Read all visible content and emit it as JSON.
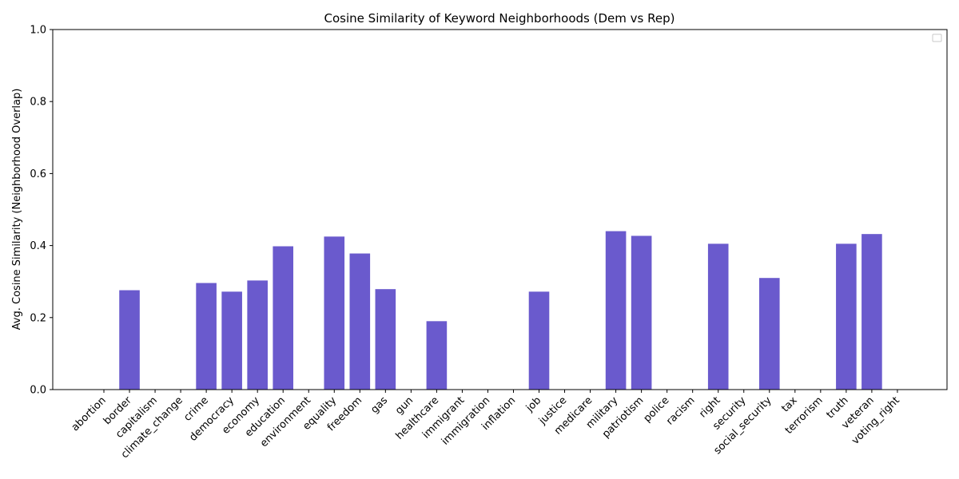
{
  "chart_data": {
    "type": "bar",
    "title": "Cosine Similarity of Keyword Neighborhoods (Dem vs Rep)",
    "xlabel": "",
    "ylabel": "Avg. Cosine Similarity (Neighborhood Overlap)",
    "ylim": [
      0,
      1.0
    ],
    "yticks": [
      "0.0",
      "0.2",
      "0.4",
      "0.6",
      "0.8",
      "1.0"
    ],
    "bar_color": "#6a5acd",
    "grid": false,
    "legend": "top-right (empty)",
    "categories": [
      "abortion",
      "border",
      "capitalism",
      "climate_change",
      "crime",
      "democracy",
      "economy",
      "education",
      "environment",
      "equality",
      "freedom",
      "gas",
      "gun",
      "healthcare",
      "immigrant",
      "immigration",
      "inflation",
      "job",
      "justice",
      "medicare",
      "military",
      "patriotism",
      "police",
      "racism",
      "right",
      "security",
      "social_security",
      "tax",
      "terrorism",
      "truth",
      "veteran",
      "voting_right"
    ],
    "values": [
      0,
      0.276,
      0,
      0,
      0.296,
      0.272,
      0.303,
      0.398,
      0,
      0.425,
      0.378,
      0.279,
      0,
      0.19,
      0,
      0,
      0,
      0.272,
      0,
      0,
      0.44,
      0.427,
      0,
      0,
      0.405,
      0,
      0.31,
      0,
      0,
      0.405,
      0.432,
      0
    ]
  }
}
